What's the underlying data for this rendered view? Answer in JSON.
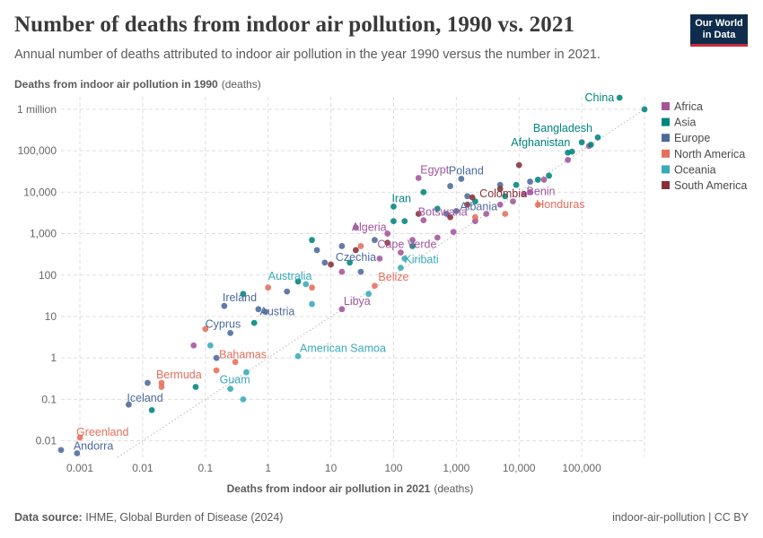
{
  "header": {
    "title": "Number of deaths from indoor air pollution, 1990 vs. 2021",
    "subtitle": "Annual number of deaths attributed to indoor air pollution in the year 1990 versus the number in 2021."
  },
  "logo": {
    "line1": "Our World",
    "line2": "in Data"
  },
  "footer": {
    "source_label": "Data source:",
    "source_text": "IHME, Global Burden of Disease (2024)",
    "slug": "indoor-air-pollution | CC BY"
  },
  "chart_data": {
    "type": "scatter",
    "title": "Number of deaths from indoor air pollution, 1990 vs. 2021",
    "ylabel": "Deaths from indoor air pollution in 1990",
    "ylabel_unit": "(deaths)",
    "xlabel": "Deaths from indoor air pollution in 2021",
    "xlabel_unit": "(deaths)",
    "xscale": "log",
    "yscale": "log",
    "xlim": [
      0.0005,
      1000000
    ],
    "ylim": [
      0.004,
      2000000
    ],
    "x_ticks": [
      {
        "value": 0.001,
        "label": "0.001"
      },
      {
        "value": 0.01,
        "label": "0.01"
      },
      {
        "value": 0.1,
        "label": "0.1"
      },
      {
        "value": 1,
        "label": "1"
      },
      {
        "value": 10,
        "label": "10"
      },
      {
        "value": 100,
        "label": "100"
      },
      {
        "value": 1000,
        "label": "1,000"
      },
      {
        "value": 10000,
        "label": "10,000"
      },
      {
        "value": 100000,
        "label": "100,000"
      }
    ],
    "y_ticks": [
      {
        "value": 0.01,
        "label": "0.01"
      },
      {
        "value": 0.1,
        "label": "0.1"
      },
      {
        "value": 1,
        "label": "1"
      },
      {
        "value": 10,
        "label": "10"
      },
      {
        "value": 100,
        "label": "100"
      },
      {
        "value": 1000,
        "label": "1,000"
      },
      {
        "value": 10000,
        "label": "10,000"
      },
      {
        "value": 100000,
        "label": "100,000"
      },
      {
        "value": 1000000,
        "label": "1 million"
      }
    ],
    "grid": true,
    "reference_line": "y = x",
    "legend_position": "right",
    "series": [
      {
        "name": "Africa",
        "color": "#a2559c",
        "points": [
          {
            "x": 250,
            "y": 22000,
            "label": "Egypt"
          },
          {
            "x": 15000,
            "y": 10000,
            "label": "Benin"
          },
          {
            "x": 300,
            "y": 2100,
            "label": "Botswana"
          },
          {
            "x": 80,
            "y": 1000,
            "label": "Algeria"
          },
          {
            "x": 130,
            "y": 350,
            "label": "Cape Verde"
          },
          {
            "x": 15,
            "y": 15,
            "label": "Libya"
          },
          {
            "x": 130000,
            "y": 130000
          },
          {
            "x": 60000,
            "y": 60000
          },
          {
            "x": 25000,
            "y": 20000
          },
          {
            "x": 12000,
            "y": 9000
          },
          {
            "x": 8000,
            "y": 6000
          },
          {
            "x": 5000,
            "y": 5000
          },
          {
            "x": 3000,
            "y": 3000
          },
          {
            "x": 2000,
            "y": 2000
          },
          {
            "x": 900,
            "y": 1100
          },
          {
            "x": 500,
            "y": 800
          },
          {
            "x": 200,
            "y": 700
          },
          {
            "x": 25,
            "y": 1400
          },
          {
            "x": 60,
            "y": 250
          },
          {
            "x": 15,
            "y": 120
          },
          {
            "x": 0.065,
            "y": 2
          }
        ]
      },
      {
        "name": "Asia",
        "color": "#00847e",
        "points": [
          {
            "x": 400000,
            "y": 1900000,
            "label": "China"
          },
          {
            "x": 180000,
            "y": 210000,
            "label": "Bangladesh"
          },
          {
            "x": 70000,
            "y": 95000,
            "label": "Afghanistan"
          },
          {
            "x": 100,
            "y": 4500,
            "label": "Iran"
          },
          {
            "x": 1000000,
            "y": 1000000
          },
          {
            "x": 140000,
            "y": 140000
          },
          {
            "x": 100000,
            "y": 160000
          },
          {
            "x": 60000,
            "y": 90000
          },
          {
            "x": 30000,
            "y": 25000
          },
          {
            "x": 20000,
            "y": 20000
          },
          {
            "x": 9000,
            "y": 15000
          },
          {
            "x": 6000,
            "y": 8000
          },
          {
            "x": 2000,
            "y": 6000
          },
          {
            "x": 300,
            "y": 10000
          },
          {
            "x": 500,
            "y": 4000
          },
          {
            "x": 150,
            "y": 2000
          },
          {
            "x": 100,
            "y": 2000
          },
          {
            "x": 200,
            "y": 500
          },
          {
            "x": 5,
            "y": 700
          },
          {
            "x": 20,
            "y": 200
          },
          {
            "x": 3,
            "y": 70
          },
          {
            "x": 0.6,
            "y": 7
          },
          {
            "x": 0.4,
            "y": 35
          },
          {
            "x": 0.07,
            "y": 0.2
          },
          {
            "x": 0.014,
            "y": 0.055
          }
        ]
      },
      {
        "name": "Europe",
        "color": "#4c6a9c",
        "points": [
          {
            "x": 1200,
            "y": 21000,
            "label": "Poland"
          },
          {
            "x": 1000,
            "y": 3500,
            "label": "Albania"
          },
          {
            "x": 30,
            "y": 120,
            "label": "Czechia"
          },
          {
            "x": 0.2,
            "y": 18,
            "label": "Ireland"
          },
          {
            "x": 0.9,
            "y": 13,
            "label": "Austria"
          },
          {
            "x": 0.25,
            "y": 4,
            "label": "Cyprus"
          },
          {
            "x": 0.006,
            "y": 0.075,
            "label": "Iceland"
          },
          {
            "x": 0.0009,
            "y": 0.005,
            "label": "Andorra"
          },
          {
            "x": 15000,
            "y": 18000
          },
          {
            "x": 5000,
            "y": 15000
          },
          {
            "x": 800,
            "y": 14000
          },
          {
            "x": 1500,
            "y": 8000
          },
          {
            "x": 700,
            "y": 3000
          },
          {
            "x": 50,
            "y": 700
          },
          {
            "x": 15,
            "y": 500
          },
          {
            "x": 6,
            "y": 400
          },
          {
            "x": 8,
            "y": 200
          },
          {
            "x": 2,
            "y": 40
          },
          {
            "x": 0.7,
            "y": 15
          },
          {
            "x": 0.15,
            "y": 1
          },
          {
            "x": 0.012,
            "y": 0.25
          },
          {
            "x": 0.0005,
            "y": 0.006
          }
        ]
      },
      {
        "name": "North America",
        "color": "#e56e5a",
        "points": [
          {
            "x": 20000,
            "y": 5000,
            "label": "Honduras"
          },
          {
            "x": 50,
            "y": 55,
            "label": "Belize"
          },
          {
            "x": 0.3,
            "y": 0.8,
            "label": "Bahamas"
          },
          {
            "x": 0.02,
            "y": 0.25,
            "label": "Bermuda"
          },
          {
            "x": 0.001,
            "y": 0.012,
            "label": "Greenland"
          },
          {
            "x": 6000,
            "y": 3000
          },
          {
            "x": 2000,
            "y": 2500
          },
          {
            "x": 30,
            "y": 500
          },
          {
            "x": 5,
            "y": 50
          },
          {
            "x": 1,
            "y": 50
          },
          {
            "x": 0.1,
            "y": 5
          },
          {
            "x": 0.15,
            "y": 0.5
          },
          {
            "x": 0.02,
            "y": 0.2
          }
        ]
      },
      {
        "name": "Oceania",
        "color": "#38aaba",
        "points": [
          {
            "x": 130,
            "y": 150,
            "label": "Kiribati"
          },
          {
            "x": 4,
            "y": 60,
            "label": "Australia"
          },
          {
            "x": 3,
            "y": 1.1,
            "label": "American Samoa"
          },
          {
            "x": 0.25,
            "y": 0.18,
            "label": "Guam"
          },
          {
            "x": 150,
            "y": 250
          },
          {
            "x": 40,
            "y": 35
          },
          {
            "x": 5,
            "y": 20
          },
          {
            "x": 0.12,
            "y": 2
          },
          {
            "x": 0.45,
            "y": 0.45
          },
          {
            "x": 0.4,
            "y": 0.1
          }
        ]
      },
      {
        "name": "South America",
        "color": "#883039",
        "points": [
          {
            "x": 1800,
            "y": 7500,
            "label": "Colombia"
          },
          {
            "x": 10000,
            "y": 45000
          },
          {
            "x": 5000,
            "y": 12000
          },
          {
            "x": 1500,
            "y": 5000
          },
          {
            "x": 800,
            "y": 2500
          },
          {
            "x": 250,
            "y": 3000
          },
          {
            "x": 80,
            "y": 600
          },
          {
            "x": 25,
            "y": 400
          },
          {
            "x": 10,
            "y": 180
          }
        ]
      }
    ]
  }
}
